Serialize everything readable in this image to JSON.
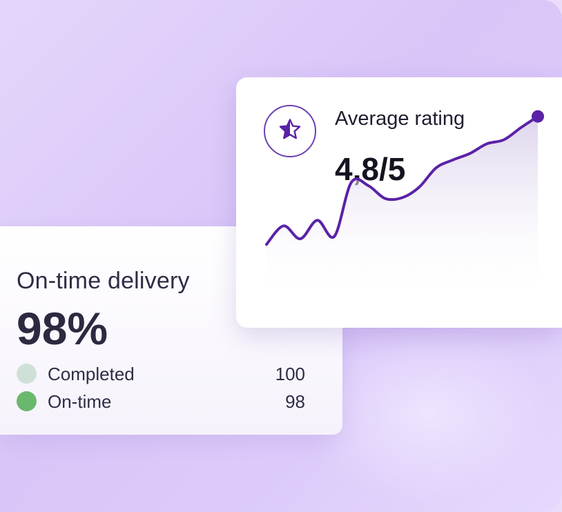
{
  "colors": {
    "accent": "#5a22a6",
    "completed_dot": "#cfe1d6",
    "ontime_dot": "#6ab86e"
  },
  "delivery_card": {
    "title": "On-time delivery",
    "value": "98%",
    "legend": [
      {
        "label": "Completed",
        "value": "100"
      },
      {
        "label": "On-time",
        "value": "98"
      }
    ]
  },
  "rating_card": {
    "icon": "star-icon",
    "title": "Average rating",
    "value": "4,8/5"
  },
  "chart_data": {
    "type": "area",
    "x": [
      0,
      1,
      2,
      3,
      4,
      5,
      6,
      7,
      8,
      9,
      10,
      11,
      12,
      13,
      14,
      15,
      16
    ],
    "values": [
      0.05,
      0.28,
      0.12,
      0.35,
      0.15,
      0.82,
      0.78,
      0.62,
      0.63,
      0.76,
      1.0,
      1.1,
      1.18,
      1.3,
      1.35,
      1.5,
      1.64
    ],
    "ylim": [
      0,
      1.8
    ],
    "grid": false,
    "end_marker": true
  }
}
